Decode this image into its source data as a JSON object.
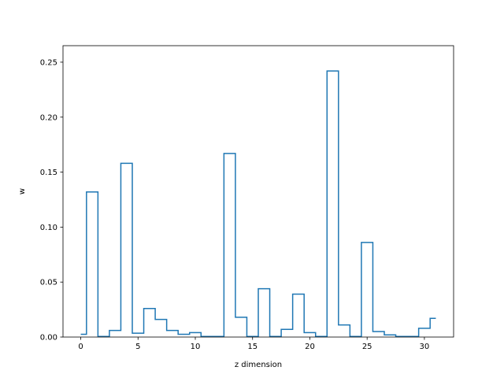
{
  "chart_data": {
    "type": "line",
    "drawstyle": "steps-mid",
    "title": "",
    "xlabel": "z dimension",
    "ylabel": "w",
    "xlim": [
      -1.55,
      32.55
    ],
    "ylim": [
      0,
      0.265
    ],
    "xticks": [
      0,
      5,
      10,
      15,
      20,
      25,
      30
    ],
    "yticks": [
      0.0,
      0.05,
      0.1,
      0.15,
      0.2,
      0.25
    ],
    "ytick_labels": [
      "0.00",
      "0.05",
      "0.10",
      "0.15",
      "0.20",
      "0.25"
    ],
    "grid": false,
    "color": "#1f77b4",
    "x": [
      0,
      1,
      2,
      3,
      4,
      5,
      6,
      7,
      8,
      9,
      10,
      11,
      12,
      13,
      14,
      15,
      16,
      17,
      18,
      19,
      20,
      21,
      22,
      23,
      24,
      25,
      26,
      27,
      28,
      29,
      30,
      31
    ],
    "values": [
      0.0025,
      0.132,
      0.0005,
      0.006,
      0.158,
      0.0035,
      0.026,
      0.016,
      0.006,
      0.0025,
      0.004,
      0.0005,
      0.0005,
      0.167,
      0.018,
      0.0005,
      0.044,
      0.0005,
      0.007,
      0.039,
      0.004,
      0.0005,
      0.242,
      0.011,
      0.0005,
      0.086,
      0.005,
      0.002,
      0.0005,
      0.0005,
      0.008,
      0.017
    ]
  }
}
